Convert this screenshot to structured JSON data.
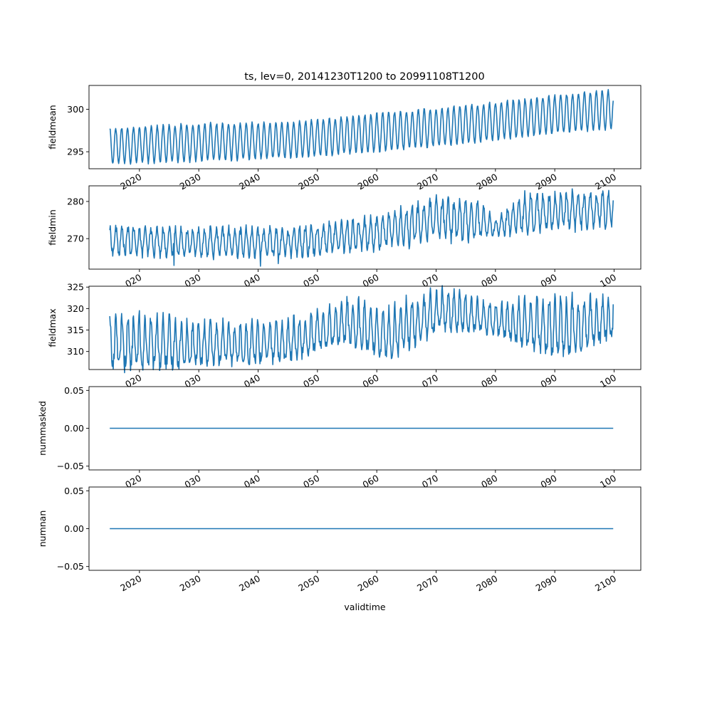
{
  "figure": {
    "title": "ts, lev=0, 20141230T1200 to 20991108T1200"
  },
  "chart_data": [
    {
      "type": "line",
      "ylabel": "fieldmean",
      "xlim": [
        2011.5,
        2104.5
      ],
      "ylim": [
        293.0,
        302.8
      ],
      "yticks": [
        295,
        300
      ],
      "ytick_labels": [
        "295",
        "300"
      ],
      "xticks": [
        2020,
        2030,
        2040,
        2050,
        2060,
        2070,
        2080,
        2090,
        2100
      ],
      "xtick_labels": [
        "2020",
        "2030",
        "2040",
        "2050",
        "2060",
        "2070",
        "2080",
        "2090",
        "2100"
      ],
      "color": "#1f77b4",
      "grid": false,
      "series": [
        {
          "x_range": [
            2015.0,
            2099.85
          ],
          "points": 1020,
          "seasonal_cycle": "monthly mean, one cycle per year",
          "trend": [
            {
              "year": 2015,
              "min": 293.6,
              "max": 297.8
            },
            {
              "year": 2030,
              "min": 293.9,
              "max": 298.3
            },
            {
              "year": 2045,
              "min": 294.3,
              "max": 298.4
            },
            {
              "year": 2060,
              "min": 295.0,
              "max": 299.5
            },
            {
              "year": 2075,
              "min": 296.0,
              "max": 300.4
            },
            {
              "year": 2090,
              "min": 297.2,
              "max": 301.6
            },
            {
              "year": 2099.85,
              "min": 297.7,
              "max": 302.3
            }
          ],
          "final_value": 301.0
        }
      ]
    },
    {
      "type": "line",
      "ylabel": "fieldmin",
      "xlim": [
        2011.5,
        2104.5
      ],
      "ylim": [
        261.8,
        284.2
      ],
      "yticks": [
        270,
        280
      ],
      "ytick_labels": [
        "270",
        "280"
      ],
      "xticks": [
        2020,
        2030,
        2040,
        2050,
        2060,
        2070,
        2080,
        2090,
        2100
      ],
      "xtick_labels": [
        "020",
        "030",
        "040",
        "050",
        "060",
        "070",
        "080",
        "090",
        "100"
      ],
      "color": "#1f77b4",
      "grid": false,
      "series": [
        {
          "x_range": [
            2015.0,
            2099.85
          ],
          "points": 1020,
          "trend": [
            {
              "year": 2015,
              "min": 266.0,
              "max": 272.8
            },
            {
              "year": 2030,
              "min": 265.5,
              "max": 272.5
            },
            {
              "year": 2045,
              "min": 265.5,
              "max": 272.5
            },
            {
              "year": 2060,
              "min": 267.5,
              "max": 275.5
            },
            {
              "year": 2070,
              "min": 270.0,
              "max": 280.5
            },
            {
              "year": 2077,
              "min": 270.5,
              "max": 279.5
            },
            {
              "year": 2080,
              "min": 271.0,
              "max": 275.0
            },
            {
              "year": 2085,
              "min": 272.0,
              "max": 281.5
            },
            {
              "year": 2099.85,
              "min": 274.0,
              "max": 282.5
            }
          ],
          "extremes": [
            {
              "x": 2025.8,
              "y": 262.8
            },
            {
              "x": 2040.4,
              "y": 262.6
            },
            {
              "x": 2043.4,
              "y": 263.3
            }
          ],
          "final_value": 280.3
        }
      ]
    },
    {
      "type": "line",
      "ylabel": "fieldmax",
      "xlim": [
        2011.5,
        2104.5
      ],
      "ylim": [
        305.8,
        325.2
      ],
      "yticks": [
        310,
        315,
        320,
        325
      ],
      "ytick_labels": [
        "310",
        "315",
        "320",
        "325"
      ],
      "xticks": [
        2020,
        2030,
        2040,
        2050,
        2060,
        2070,
        2080,
        2090,
        2100
      ],
      "xtick_labels": [
        "020",
        "030",
        "040",
        "050",
        "060",
        "070",
        "080",
        "090",
        "100"
      ],
      "color": "#1f77b4",
      "grid": false,
      "series": [
        {
          "x_range": [
            2015.0,
            2099.85
          ],
          "points": 1020,
          "trend": [
            {
              "year": 2015,
              "min": 306.8,
              "max": 319.0
            },
            {
              "year": 2030,
              "min": 307.5,
              "max": 316.5
            },
            {
              "year": 2045,
              "min": 308.5,
              "max": 317.0
            },
            {
              "year": 2055,
              "min": 313.0,
              "max": 322.0
            },
            {
              "year": 2062,
              "min": 309.0,
              "max": 320.0
            },
            {
              "year": 2071,
              "min": 316.0,
              "max": 324.5
            },
            {
              "year": 2080,
              "min": 314.5,
              "max": 321.0
            },
            {
              "year": 2090,
              "min": 309.5,
              "max": 322.5
            },
            {
              "year": 2099.85,
              "min": 314.0,
              "max": 322.0
            }
          ],
          "final_value": 321.0
        }
      ]
    },
    {
      "type": "line",
      "ylabel": "nummasked",
      "xlim": [
        2011.5,
        2104.5
      ],
      "ylim": [
        -0.055,
        0.055
      ],
      "yticks": [
        -0.05,
        0.0,
        0.05
      ],
      "ytick_labels": [
        "−0.05",
        "0.00",
        "0.05"
      ],
      "xticks": [
        2020,
        2030,
        2040,
        2050,
        2060,
        2070,
        2080,
        2090,
        2100
      ],
      "xtick_labels": [
        "020",
        "030",
        "040",
        "050",
        "060",
        "070",
        "080",
        "090",
        "100"
      ],
      "color": "#1f77b4",
      "grid": false,
      "series": [
        {
          "x": [
            2015.0,
            2099.85
          ],
          "y": [
            0.0,
            0.0
          ]
        }
      ]
    },
    {
      "type": "line",
      "ylabel": "numnan",
      "xlabel": "validtime",
      "xlim": [
        2011.5,
        2104.5
      ],
      "ylim": [
        -0.055,
        0.055
      ],
      "yticks": [
        -0.05,
        0.0,
        0.05
      ],
      "ytick_labels": [
        "−0.05",
        "0.00",
        "0.05"
      ],
      "xticks": [
        2020,
        2030,
        2040,
        2050,
        2060,
        2070,
        2080,
        2090,
        2100
      ],
      "xtick_labels": [
        "2020",
        "2030",
        "2040",
        "2050",
        "2060",
        "2070",
        "2080",
        "2090",
        "2100"
      ],
      "color": "#1f77b4",
      "grid": false,
      "series": [
        {
          "x": [
            2015.0,
            2099.85
          ],
          "y": [
            0.0,
            0.0
          ]
        }
      ]
    }
  ]
}
